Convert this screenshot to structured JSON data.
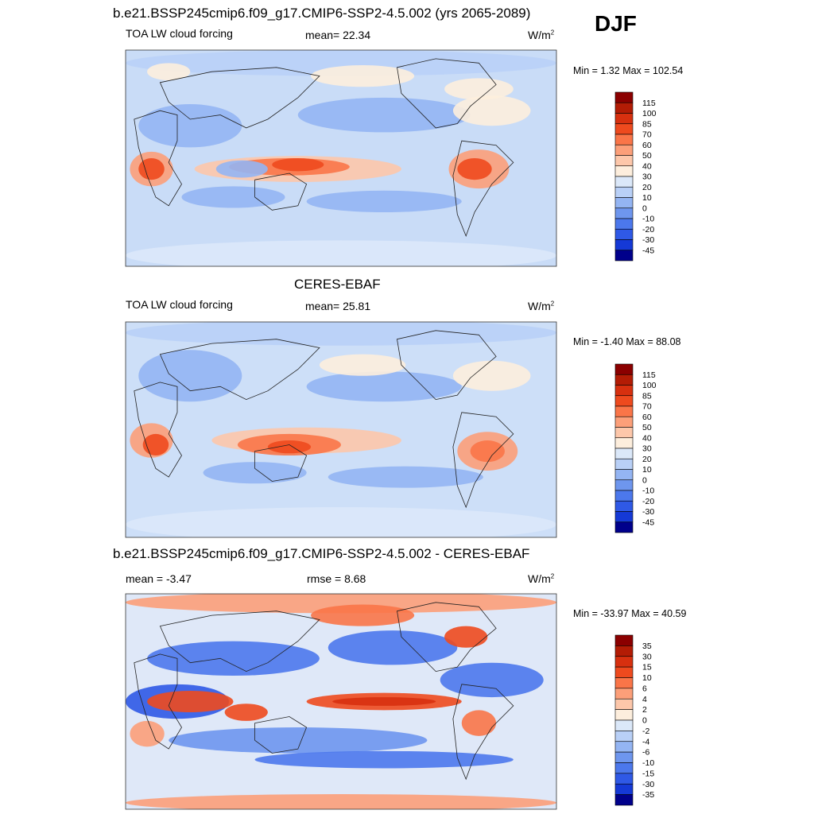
{
  "season": "DJF",
  "chart_data": [
    {
      "type": "heatmap",
      "title": "b.e21.BSSP245cmip6.f09_g17.CMIP6-SSP2-4.5.002 (yrs 2065-2089)",
      "left_label": "TOA LW cloud forcing",
      "center_label": "mean=  22.34",
      "units_base": "W/m",
      "units_exp": "2",
      "minmax": "Min =   1.32 Max = 102.54",
      "min": 1.32,
      "max": 102.54,
      "mean": 22.34,
      "colorbar": {
        "levels": [
          "115",
          "100",
          "85",
          "70",
          "60",
          "50",
          "40",
          "30",
          "20",
          "10",
          "0",
          "-10",
          "-20",
          "-30",
          "-45"
        ],
        "colors": [
          "#8b0000",
          "#b31c05",
          "#d7300f",
          "#ee4a1e",
          "#fa7548",
          "#fc9f79",
          "#fdc7aa",
          "#fdeedd",
          "#dbe8f9",
          "#b9d0f7",
          "#94b5f3",
          "#6e96ee",
          "#4c78ec",
          "#2f59e6",
          "#1539d6",
          "#00008b"
        ]
      }
    },
    {
      "type": "heatmap",
      "title": "CERES-EBAF",
      "left_label": "TOA LW cloud forcing",
      "center_label": "mean=  25.81",
      "units_base": "W/m",
      "units_exp": "2",
      "minmax": "Min =  -1.40 Max =  88.08",
      "min": -1.4,
      "max": 88.08,
      "mean": 25.81,
      "colorbar": {
        "levels": [
          "115",
          "100",
          "85",
          "70",
          "60",
          "50",
          "40",
          "30",
          "20",
          "10",
          "0",
          "-10",
          "-20",
          "-30",
          "-45"
        ],
        "colors": [
          "#8b0000",
          "#b31c05",
          "#d7300f",
          "#ee4a1e",
          "#fa7548",
          "#fc9f79",
          "#fdc7aa",
          "#fdeedd",
          "#dbe8f9",
          "#b9d0f7",
          "#94b5f3",
          "#6e96ee",
          "#4c78ec",
          "#2f59e6",
          "#1539d6",
          "#00008b"
        ]
      }
    },
    {
      "type": "heatmap",
      "title": "b.e21.BSSP245cmip6.f09_g17.CMIP6-SSP2-4.5.002 - CERES-EBAF",
      "left_label": "mean =  -3.47",
      "center_label": "rmse =   8.68",
      "units_base": "W/m",
      "units_exp": "2",
      "minmax": "Min = -33.97 Max =  40.59",
      "min": -33.97,
      "max": 40.59,
      "mean": -3.47,
      "rmse": 8.68,
      "colorbar": {
        "levels": [
          "35",
          "30",
          "15",
          "10",
          "6",
          "4",
          "2",
          "0",
          "-2",
          "-4",
          "-6",
          "-10",
          "-15",
          "-30",
          "-35"
        ],
        "colors": [
          "#8b0000",
          "#b31c05",
          "#d7300f",
          "#ee4a1e",
          "#fa7548",
          "#fc9f79",
          "#fdc7aa",
          "#fdeedd",
          "#dbe8f9",
          "#b9d0f7",
          "#94b5f3",
          "#6e96ee",
          "#4c78ec",
          "#2f59e6",
          "#1539d6",
          "#00008b"
        ]
      }
    }
  ]
}
